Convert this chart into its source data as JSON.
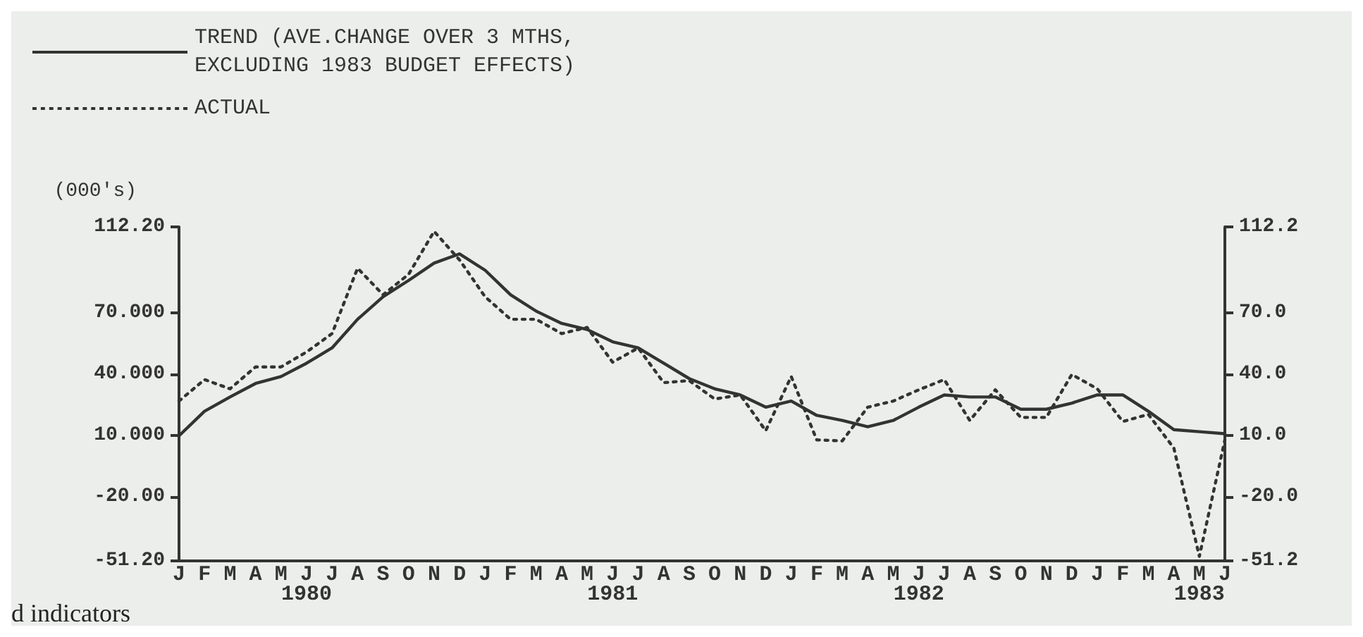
{
  "chart_data": {
    "type": "line",
    "ylabel": "(000's)",
    "categories": [
      "J",
      "F",
      "M",
      "A",
      "M",
      "J\n1980",
      "J",
      "A",
      "S",
      "O",
      "N",
      "D",
      "J",
      "F",
      "M",
      "A",
      "M",
      "J\n1981",
      "J",
      "A",
      "S",
      "O",
      "N",
      "D",
      "J",
      "F",
      "M",
      "A",
      "M",
      "J\n1982",
      "J",
      "A",
      "S",
      "O",
      "N",
      "D",
      "J",
      "F",
      "M",
      "A",
      "M\n1983",
      "J"
    ],
    "series": [
      {
        "name": "TREND (AVE.CHANGE OVER 3 MTHS,\nEXCLUDING 1983 BUDGET EFFECTS)",
        "color": "#333333",
        "line_style": "solid",
        "values": [
          10,
          22,
          29,
          35.6,
          39,
          45.5,
          53,
          67,
          78,
          86,
          94.5,
          99,
          91,
          79,
          71,
          65,
          62,
          56,
          53,
          45.5,
          38,
          33,
          30,
          24,
          27,
          20,
          17.5,
          14.4,
          17.5,
          24,
          30,
          29,
          29,
          23,
          23,
          26,
          30,
          30,
          22,
          13,
          12,
          11
        ]
      },
      {
        "name": "ACTUAL",
        "color": "#333333",
        "line_style": "dotted",
        "values": [
          27,
          37.5,
          33,
          43.7,
          43.7,
          51,
          60,
          92,
          79,
          89,
          110,
          96,
          78,
          67,
          67,
          60,
          63,
          46,
          53,
          36,
          37,
          28,
          30,
          12.5,
          39,
          8,
          7.5,
          24,
          27,
          32.5,
          37.5,
          17.5,
          32.5,
          19,
          19,
          40,
          33,
          17,
          20.5,
          4,
          -49,
          8
        ]
      }
    ],
    "ylim": [
      -51.2,
      112.2
    ],
    "yticks": [
      {
        "value": 112.2,
        "label": "112.20"
      },
      {
        "value": 70,
        "label": "70.000"
      },
      {
        "value": 40,
        "label": "40.000"
      },
      {
        "value": 10,
        "label": "10.000"
      },
      {
        "value": -20,
        "label": "-20.00"
      },
      {
        "value": -51.2,
        "label": "-51.20"
      }
    ],
    "y2lim": [
      -51.2,
      112.2
    ],
    "y2ticks": [
      {
        "value": 112.2,
        "label": "112.2"
      },
      {
        "value": 70,
        "label": "70.0"
      },
      {
        "value": 40,
        "label": "40.0"
      },
      {
        "value": 10,
        "label": "10.0"
      },
      {
        "value": -20,
        "label": "-20.0"
      },
      {
        "value": -51.2,
        "label": "-51.2"
      }
    ],
    "annotations": [
      "d indicators"
    ],
    "legend": "top left",
    "grid": false,
    "marker": "none"
  }
}
